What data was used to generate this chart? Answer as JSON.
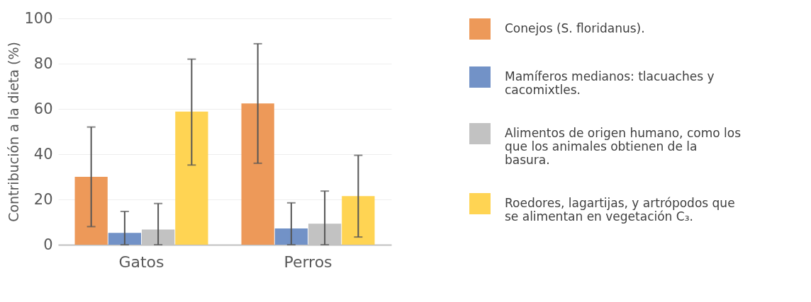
{
  "chart_data": {
    "type": "bar",
    "ylabel": "Contribución a la dieta (%)",
    "categories": [
      "Gatos",
      "Perros"
    ],
    "series": [
      {
        "name": "Conejos (S. floridanus).",
        "color": "#ec9450",
        "values": [
          30,
          62.4
        ],
        "errors": [
          [
            8,
            52
          ],
          [
            36,
            88.8
          ]
        ]
      },
      {
        "name": "Mamíferos medianos: tlacuaches y cacomixtles.",
        "color": "#6a8cc4",
        "values": [
          5.2,
          7.2
        ],
        "errors": [
          [
            0,
            14.7
          ],
          [
            0,
            18.5
          ]
        ]
      },
      {
        "name": "Alimentos de origen humano, como los que los animales obtienen de la basura.",
        "color": "#bfbfbf",
        "values": [
          6.7,
          9.3
        ],
        "errors": [
          [
            0,
            18.2
          ],
          [
            0,
            23.7
          ]
        ]
      },
      {
        "name": "Roedores, lagartijas, y artrópodos que se alimentan en vegetación C₃.",
        "color": "#ffd24a",
        "values": [
          58.8,
          21.5
        ],
        "errors": [
          [
            35.2,
            82
          ],
          [
            3.4,
            39.5
          ]
        ]
      }
    ],
    "ylim": [
      0,
      100
    ],
    "yticks": [
      0,
      20,
      40,
      60,
      80,
      100
    ],
    "grid": "y",
    "legend": "right"
  }
}
